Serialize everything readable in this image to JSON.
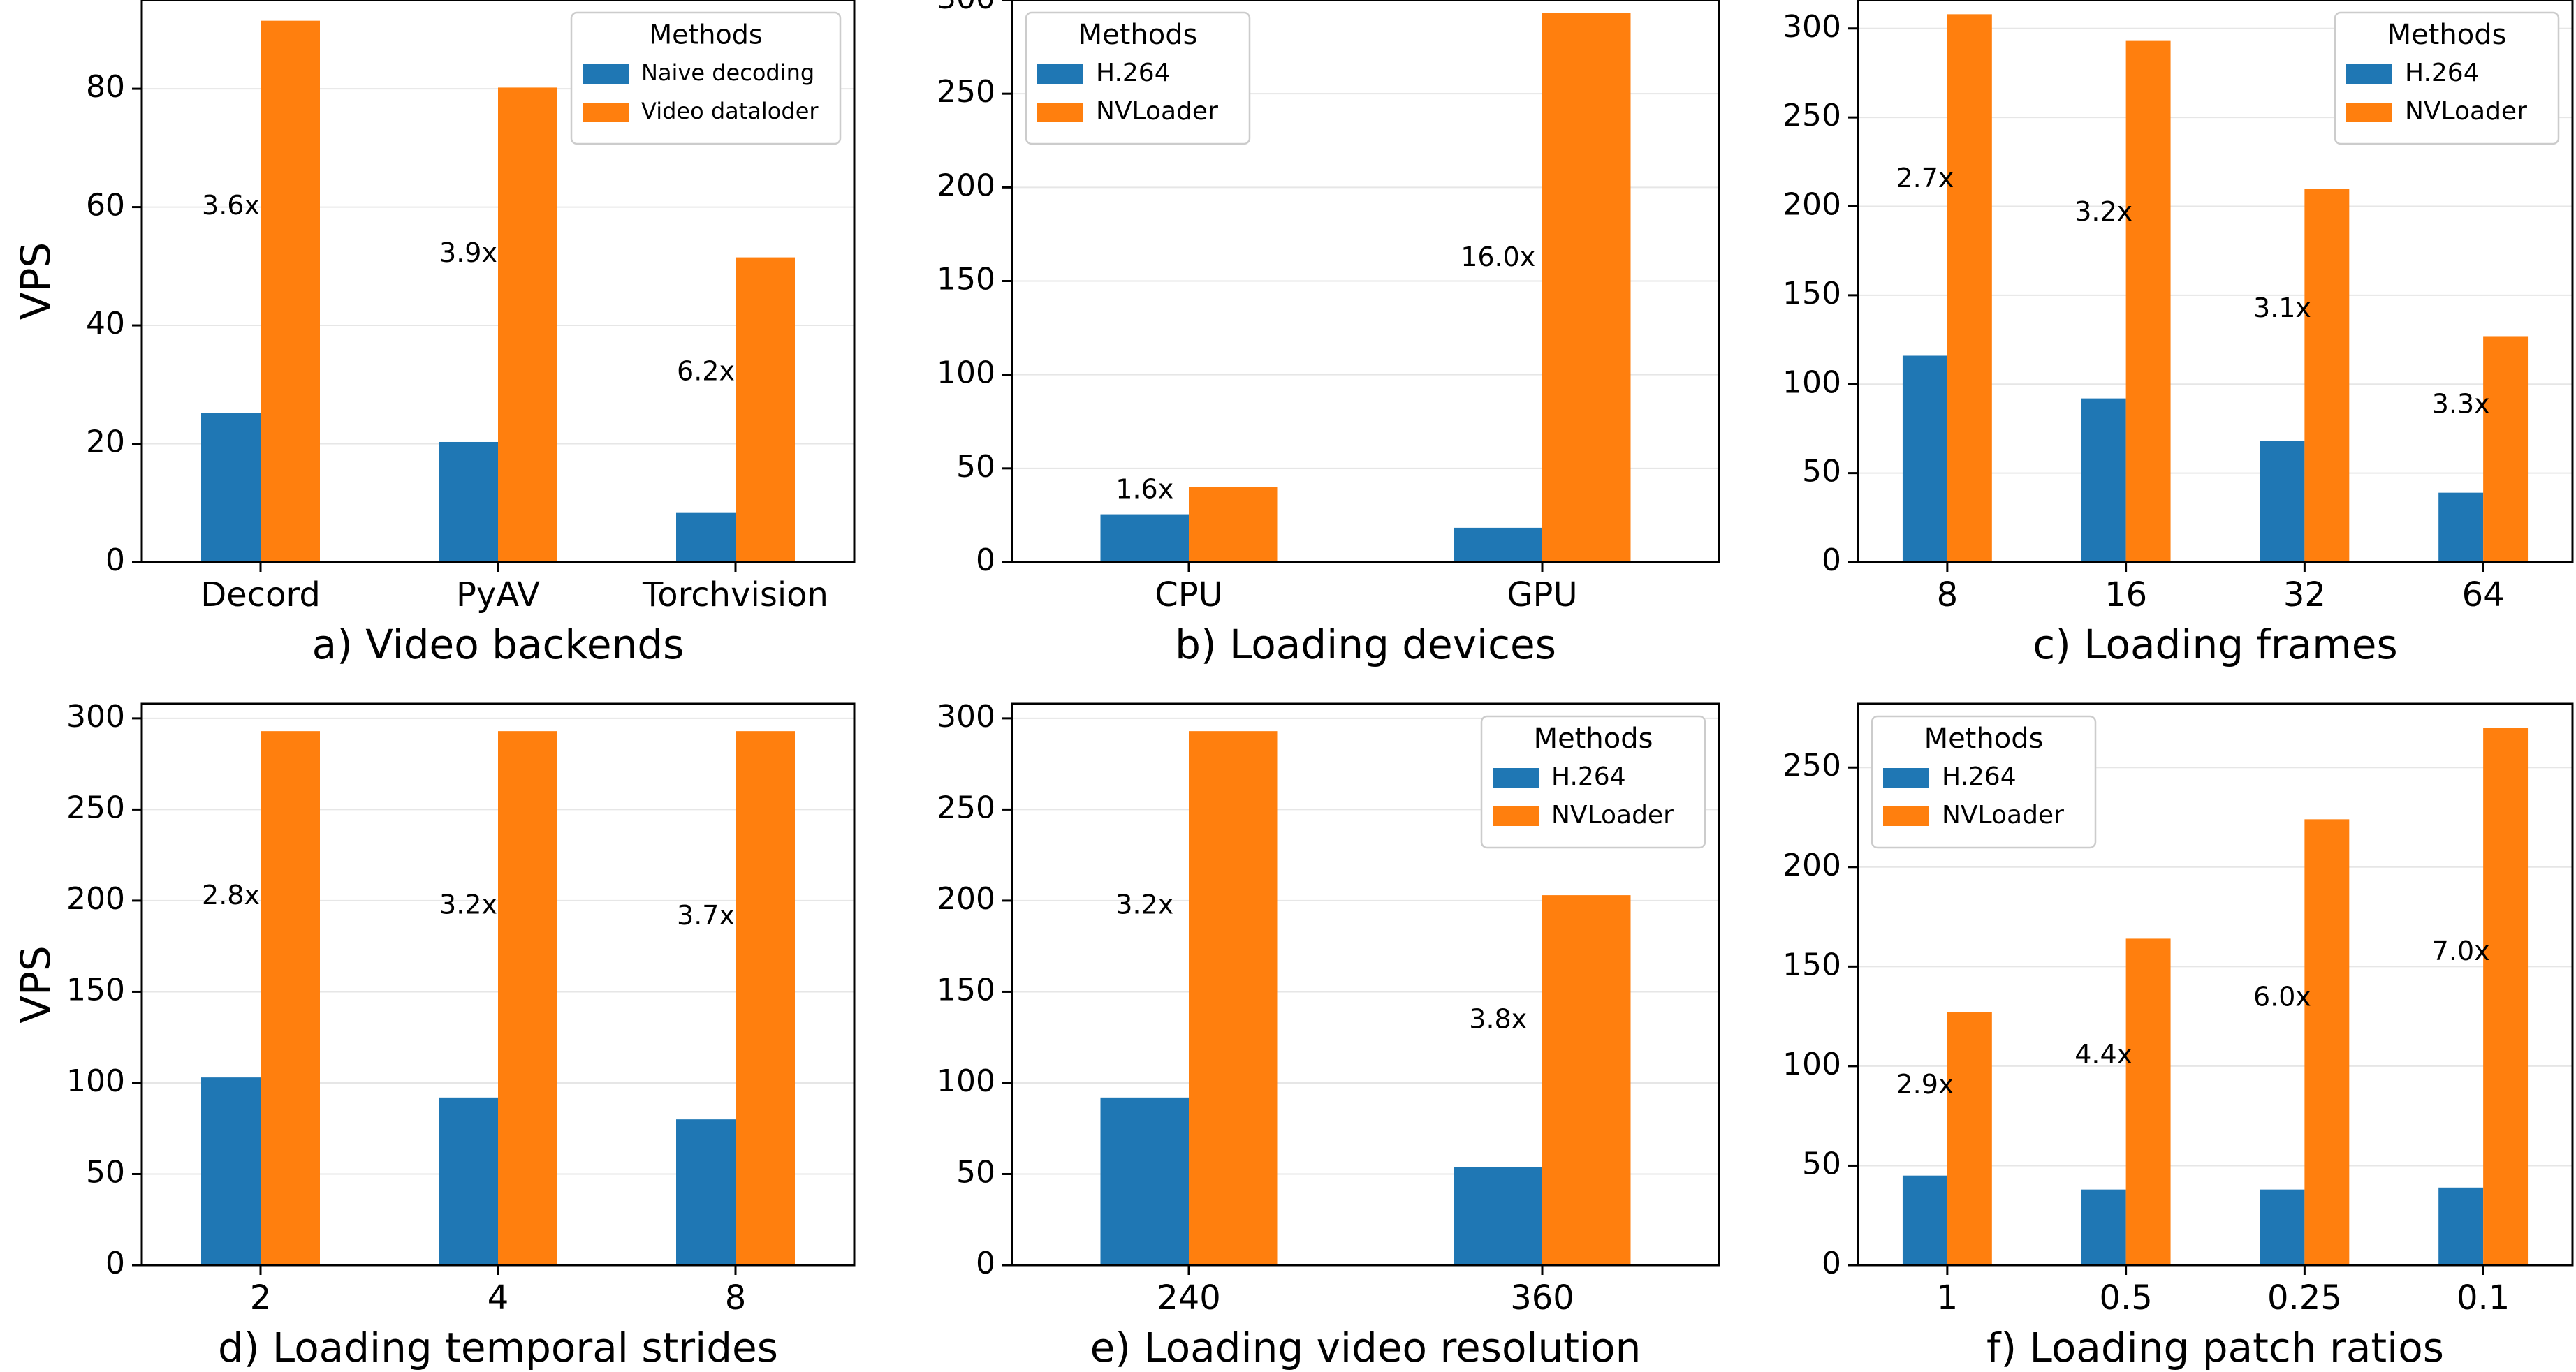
{
  "figure": {
    "colors": {
      "series_a": "#1f77b4",
      "series_b": "#ff7f0e",
      "grid": "#e6e6e6",
      "axis": "#000000"
    },
    "y_axis_label": "VPS"
  },
  "chart_data": [
    {
      "type": "bar",
      "panel": "top-left",
      "title": "a) Video backends",
      "xlabel": "",
      "ylabel": "VPS",
      "categories": [
        "Decord",
        "PyAV",
        "Torchvision"
      ],
      "series": [
        {
          "name": "Naive decoding",
          "values": [
            25.2,
            20.3,
            8.3
          ]
        },
        {
          "name": "Video dataloder",
          "values": [
            91.5,
            80.2,
            51.5
          ]
        }
      ],
      "annotations": [
        {
          "text": "3.6x",
          "category": "Decord",
          "y": 60
        },
        {
          "text": "3.9x",
          "category": "PyAV",
          "y": 52
        },
        {
          "text": "6.2x",
          "category": "Torchvision",
          "y": 32
        }
      ],
      "ylim": [
        0,
        95
      ],
      "yticks": [
        0,
        20,
        40,
        60,
        80
      ],
      "grid": true,
      "legend": {
        "title": "Methods",
        "placement": "top-right",
        "size": "small"
      }
    },
    {
      "type": "bar",
      "panel": "top-middle",
      "title": "b) Loading devices",
      "xlabel": "",
      "ylabel": "",
      "categories": [
        "CPU",
        "GPU"
      ],
      "series": [
        {
          "name": "H.264",
          "values": [
            25.5,
            18.3
          ]
        },
        {
          "name": "NVLoader",
          "values": [
            40,
            293
          ]
        }
      ],
      "annotations": [
        {
          "text": "1.6x",
          "category": "CPU",
          "y": 38
        },
        {
          "text": "16.0x",
          "category": "GPU",
          "y": 162
        }
      ],
      "ylim": [
        0,
        300
      ],
      "yticks": [
        0,
        50,
        100,
        150,
        200,
        250,
        300
      ],
      "grid": true,
      "legend": {
        "title": "Methods",
        "placement": "top-left",
        "size": "normal"
      }
    },
    {
      "type": "bar",
      "panel": "top-right",
      "title": "c) Loading frames",
      "xlabel": "",
      "ylabel": "",
      "categories": [
        "8",
        "16",
        "32",
        "64"
      ],
      "series": [
        {
          "name": "H.264",
          "values": [
            116,
            92,
            68,
            39
          ]
        },
        {
          "name": "NVLoader",
          "values": [
            308,
            293,
            210,
            127
          ]
        }
      ],
      "annotations": [
        {
          "text": "2.7x",
          "category": "8",
          "y": 215
        },
        {
          "text": "3.2x",
          "category": "16",
          "y": 196
        },
        {
          "text": "3.1x",
          "category": "32",
          "y": 142
        },
        {
          "text": "3.3x",
          "category": "64",
          "y": 88
        }
      ],
      "ylim": [
        0,
        316
      ],
      "yticks": [
        0,
        50,
        100,
        150,
        200,
        250,
        300
      ],
      "grid": true,
      "legend": {
        "title": "Methods",
        "placement": "top-right",
        "size": "normal"
      }
    },
    {
      "type": "bar",
      "panel": "bottom-left",
      "title": "d) Loading temporal strides",
      "xlabel": "",
      "ylabel": "VPS",
      "categories": [
        "2",
        "4",
        "8"
      ],
      "series": [
        {
          "name": "H.264",
          "values": [
            103,
            92,
            80
          ]
        },
        {
          "name": "NVLoader",
          "values": [
            293,
            293,
            293
          ]
        }
      ],
      "annotations": [
        {
          "text": "2.8x",
          "category": "2",
          "y": 202
        },
        {
          "text": "3.2x",
          "category": "4",
          "y": 197
        },
        {
          "text": "3.7x",
          "category": "8",
          "y": 191
        }
      ],
      "ylim": [
        0,
        308
      ],
      "yticks": [
        0,
        50,
        100,
        150,
        200,
        250,
        300
      ],
      "grid": true,
      "legend": null
    },
    {
      "type": "bar",
      "panel": "bottom-middle",
      "title": "e) Loading video resolution",
      "xlabel": "",
      "ylabel": "",
      "categories": [
        "240",
        "360"
      ],
      "series": [
        {
          "name": "H.264",
          "values": [
            92,
            54
          ]
        },
        {
          "name": "NVLoader",
          "values": [
            293,
            203
          ]
        }
      ],
      "annotations": [
        {
          "text": "3.2x",
          "category": "240",
          "y": 197
        },
        {
          "text": "3.8x",
          "category": "360",
          "y": 134
        }
      ],
      "ylim": [
        0,
        308
      ],
      "yticks": [
        0,
        50,
        100,
        150,
        200,
        250,
        300
      ],
      "grid": true,
      "legend": {
        "title": "Methods",
        "placement": "top-right",
        "size": "normal"
      }
    },
    {
      "type": "bar",
      "panel": "bottom-right",
      "title": "f) Loading patch ratios",
      "xlabel": "",
      "ylabel": "",
      "categories": [
        "1",
        "0.5",
        "0.25",
        "0.1"
      ],
      "series": [
        {
          "name": "H.264",
          "values": [
            45,
            38,
            38,
            39
          ]
        },
        {
          "name": "NVLoader",
          "values": [
            127,
            164,
            224,
            270
          ]
        }
      ],
      "annotations": [
        {
          "text": "2.9x",
          "category": "1",
          "y": 90
        },
        {
          "text": "4.4x",
          "category": "0.5",
          "y": 105
        },
        {
          "text": "6.0x",
          "category": "0.25",
          "y": 134
        },
        {
          "text": "7.0x",
          "category": "0.1",
          "y": 157
        }
      ],
      "ylim": [
        0,
        282
      ],
      "yticks": [
        0,
        50,
        100,
        150,
        200,
        250
      ],
      "grid": true,
      "legend": {
        "title": "Methods",
        "placement": "top-left",
        "size": "normal"
      }
    }
  ]
}
